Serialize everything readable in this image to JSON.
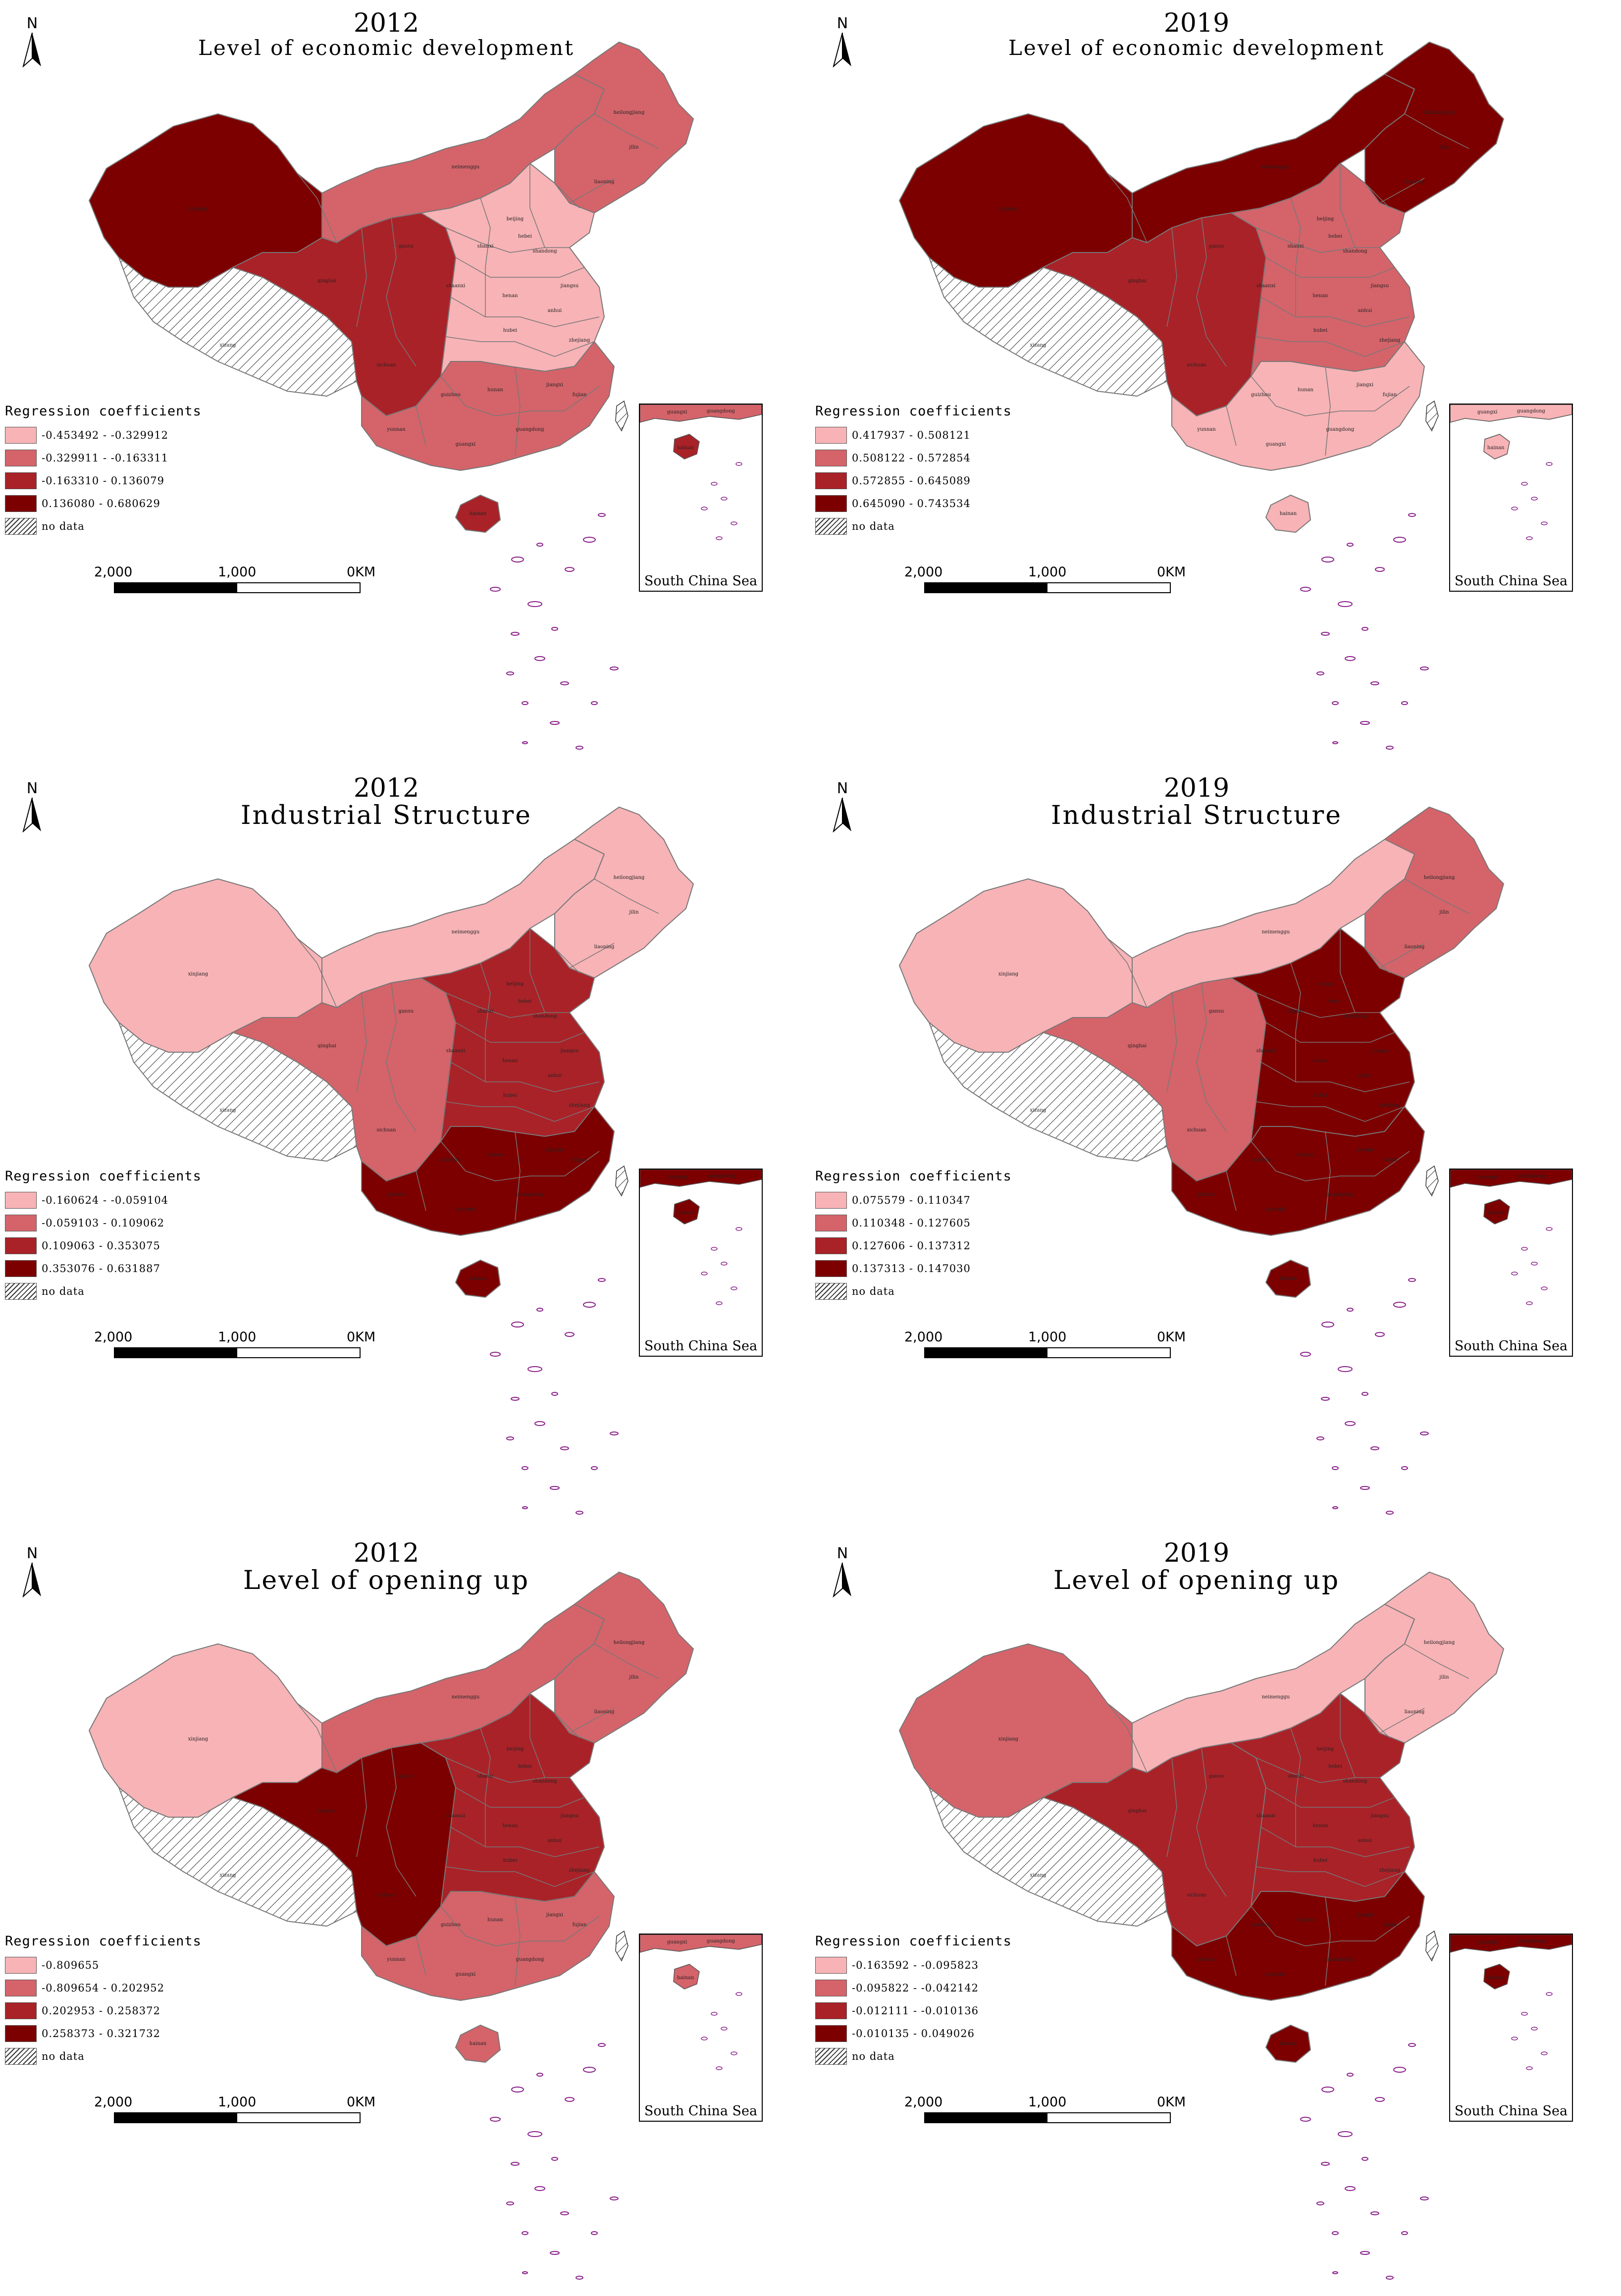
{
  "panels": [
    {
      "id": "econ-2012",
      "year": "2012",
      "name": "Level of economic development",
      "legend": {
        "title": "Regression coefficients",
        "classes": [
          "-0.453492 - -0.329912",
          "-0.329911 - -0.163311",
          "-0.163310 - 0.136079",
          "0.136080 - 0.680629"
        ],
        "no_data": "no data"
      },
      "region_class": {
        "nw": 3,
        "tibet": -1,
        "north": 1,
        "northeast": 1,
        "westc": 2,
        "eastc": 0,
        "south": 1,
        "hainan": 2
      }
    },
    {
      "id": "econ-2019",
      "year": "2019",
      "name": "Level of economic development",
      "legend": {
        "title": "Regression coefficients",
        "classes": [
          "0.417937 - 0.508121",
          "0.508122 - 0.572854",
          "0.572855 - 0.645089",
          "0.645090 - 0.743534"
        ],
        "no_data": "no data"
      },
      "region_class": {
        "nw": 3,
        "tibet": -1,
        "north": 3,
        "northeast": 3,
        "westc": 2,
        "eastc": 1,
        "south": 0,
        "hainan": 0
      }
    },
    {
      "id": "ind-2012",
      "year": "2012",
      "name": "Industrial Structure",
      "legend": {
        "title": "Regression coefficients",
        "classes": [
          "-0.160624 - -0.059104",
          "-0.059103 - 0.109062",
          "0.109063 - 0.353075",
          "0.353076 - 0.631887"
        ],
        "no_data": "no data"
      },
      "region_class": {
        "nw": 0,
        "tibet": -1,
        "north": 0,
        "northeast": 0,
        "westc": 1,
        "eastc": 2,
        "south": 3,
        "hainan": 3
      }
    },
    {
      "id": "ind-2019",
      "year": "2019",
      "name": "Industrial Structure",
      "legend": {
        "title": "Regression coefficients",
        "classes": [
          "0.075579 - 0.110347",
          "0.110348 - 0.127605",
          "0.127606 - 0.137312",
          "0.137313 - 0.147030"
        ],
        "no_data": "no data"
      },
      "region_class": {
        "nw": 0,
        "tibet": -1,
        "north": 0,
        "northeast": 1,
        "westc": 1,
        "eastc": 3,
        "south": 3,
        "hainan": 3
      }
    },
    {
      "id": "open-2012",
      "year": "2012",
      "name": "Level of opening up",
      "legend": {
        "title": "Regression coefficients",
        "classes": [
          "-0.809655",
          "-0.809654 - 0.202952",
          "0.202953 - 0.258372",
          "0.258373 - 0.321732"
        ],
        "no_data": "no data"
      },
      "region_class": {
        "nw": 0,
        "tibet": -1,
        "north": 1,
        "northeast": 1,
        "westc": 3,
        "eastc": 2,
        "south": 1,
        "hainan": 1
      }
    },
    {
      "id": "open-2019",
      "year": "2019",
      "name": "Level of opening up",
      "legend": {
        "title": "Regression coefficients",
        "classes": [
          "-0.163592 - -0.095823",
          "-0.095822 - -0.042142",
          "-0.012111 - -0.010136",
          "-0.010135 - 0.049026"
        ],
        "no_data": "no data"
      },
      "region_class": {
        "nw": 1,
        "tibet": -1,
        "north": 0,
        "northeast": 0,
        "westc": 2,
        "eastc": 2,
        "south": 3,
        "hainan": 3
      }
    }
  ],
  "class_colors": [
    "#f7b3b6",
    "#d4646a",
    "#a92228",
    "#7d0000"
  ],
  "no_data_color": "#ffffff",
  "boundary_color": "#777777",
  "island_color": "#8a1f8a",
  "province_labels": {
    "nw": "xinjiang",
    "tibet": "xizang",
    "north": "neimenggu",
    "northeast": "heilongjiang",
    "northeast2": "jilin",
    "northeast3": "liaoning",
    "westc": "qinghai",
    "westc2": "sichuan",
    "westc3": "gansu",
    "eastc": "henan",
    "eastc2": "hubei",
    "eastc3": "anhui",
    "eastc4": "jiangsu",
    "eastc5": "zhejiang",
    "eastc6": "shandong",
    "eastc7": "hebei",
    "eastc8": "beijing",
    "eastc9": "shanxi",
    "eastc10": "shaanxi",
    "south": "guangdong",
    "south2": "guangxi",
    "south3": "yunnan",
    "south4": "guizhou",
    "south5": "hunan",
    "south6": "jiangxi",
    "south7": "fujian",
    "hainan": "hainan"
  },
  "north_label": "N",
  "scale": {
    "left": "2,000",
    "mid": "1,000",
    "right": "0KM"
  },
  "inset_label": "South China Sea",
  "inset_labels": {
    "a": "guangxi",
    "b": "guangdong",
    "c": "hainan"
  }
}
